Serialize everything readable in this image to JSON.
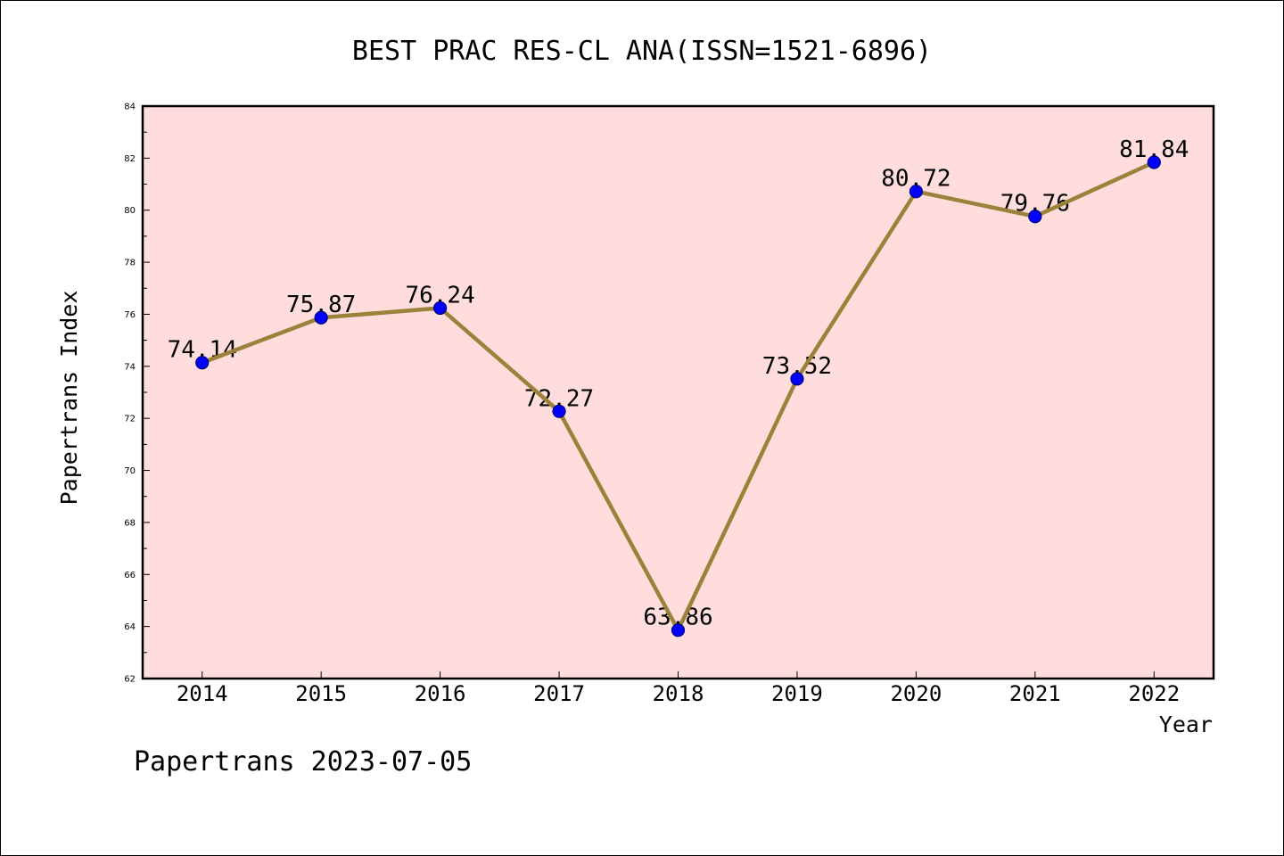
{
  "footer": {
    "text": "Papertrans 2023-07-05"
  },
  "chart_data": {
    "type": "line",
    "title": "BEST PRAC RES-CL ANA(ISSN=1521-6896)",
    "xlabel": "Year",
    "ylabel": "Papertrans Index",
    "categories": [
      "2014",
      "2015",
      "2016",
      "2017",
      "2018",
      "2019",
      "2020",
      "2021",
      "2022"
    ],
    "x": [
      2014,
      2015,
      2016,
      2017,
      2018,
      2019,
      2020,
      2021,
      2022
    ],
    "series": [
      {
        "values": [
          74.14,
          75.87,
          76.24,
          72.27,
          63.86,
          73.52,
          80.72,
          79.76,
          81.84
        ],
        "data_labels": true
      }
    ],
    "xlim": [
      2013.5,
      2022.5
    ],
    "ylim": [
      62,
      84
    ],
    "yticks": [
      62,
      64,
      66,
      68,
      70,
      72,
      74,
      76,
      78,
      80,
      82,
      84
    ],
    "y_minor_step": 1,
    "grid": false,
    "colors": {
      "line": "#9B823A",
      "marker": "#0000FF",
      "marker_edge": "#00007A",
      "plot_background": "#FFDDDD",
      "frame": "#000000"
    }
  }
}
